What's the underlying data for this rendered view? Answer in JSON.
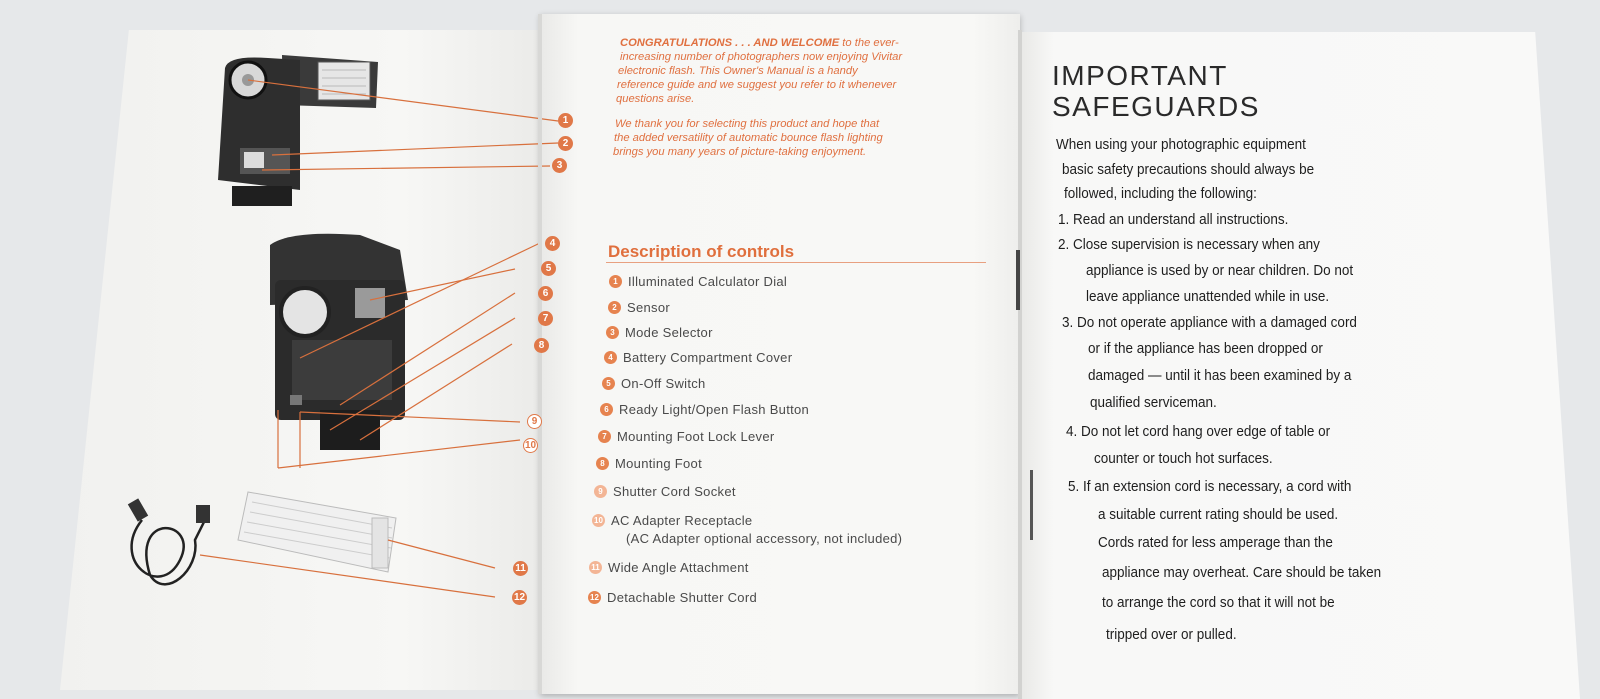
{
  "intro": {
    "lead": "CONGRATULATIONS . . . AND WELCOME",
    "p1_lines": [
      " to the ever-",
      "increasing number of photographers now enjoying Vivitar",
      "electronic flash. This Owner's Manual is a handy",
      "reference guide and we suggest you refer to it whenever",
      "questions arise."
    ],
    "p2_lines": [
      "We thank you for selecting this product and hope that",
      "the added versatility of automatic bounce flash lighting",
      "brings you many years of picture-taking enjoyment."
    ]
  },
  "controls": {
    "title": "Description of controls",
    "items": [
      {
        "num": "1",
        "label": "Illuminated Calculator Dial"
      },
      {
        "num": "2",
        "label": "Sensor"
      },
      {
        "num": "3",
        "label": "Mode Selector"
      },
      {
        "num": "4",
        "label": "Battery Compartment Cover"
      },
      {
        "num": "5",
        "label": "On-Off Switch"
      },
      {
        "num": "6",
        "label": "Ready Light/Open Flash Button"
      },
      {
        "num": "7",
        "label": "Mounting Foot Lock Lever"
      },
      {
        "num": "8",
        "label": "Mounting Foot"
      },
      {
        "num": "9",
        "label": "Shutter Cord Socket"
      },
      {
        "num": "10",
        "label": "AC Adapter Receptacle",
        "sub": "(AC Adapter optional accessory, not included)"
      },
      {
        "num": "11",
        "label": "Wide Angle Attachment"
      },
      {
        "num": "12",
        "label": "Detachable Shutter Cord"
      }
    ]
  },
  "callouts": [
    "1",
    "2",
    "3",
    "4",
    "5",
    "6",
    "7",
    "8",
    "9",
    "10",
    "11",
    "12"
  ],
  "safeguards": {
    "title_1": "IMPORTANT",
    "title_2": "SAFEGUARDS",
    "lines": [
      "When using your photographic equipment",
      "basic safety precautions should always be",
      "followed, including the following:",
      "1. Read an understand all instructions.",
      "2. Close supervision is necessary when any",
      "appliance is used by or near children. Do not",
      "leave appliance unattended while in use.",
      "3. Do not operate appliance with a damaged cord",
      "or if the appliance has been dropped or",
      "damaged — until it has been examined by a",
      "qualified serviceman.",
      "4. Do not let cord hang over edge of table or",
      "counter or touch hot surfaces.",
      "5. If an extension cord is necessary, a cord with",
      "a suitable current rating should be used.",
      "Cords rated for less amperage than the",
      "appliance may overheat. Care should be taken",
      "to arrange the cord so that it will not be",
      "tripped over or pulled."
    ]
  },
  "colors": {
    "accent": "#e07040",
    "text": "#1e1e1e",
    "paper": "#f7f7f5"
  }
}
